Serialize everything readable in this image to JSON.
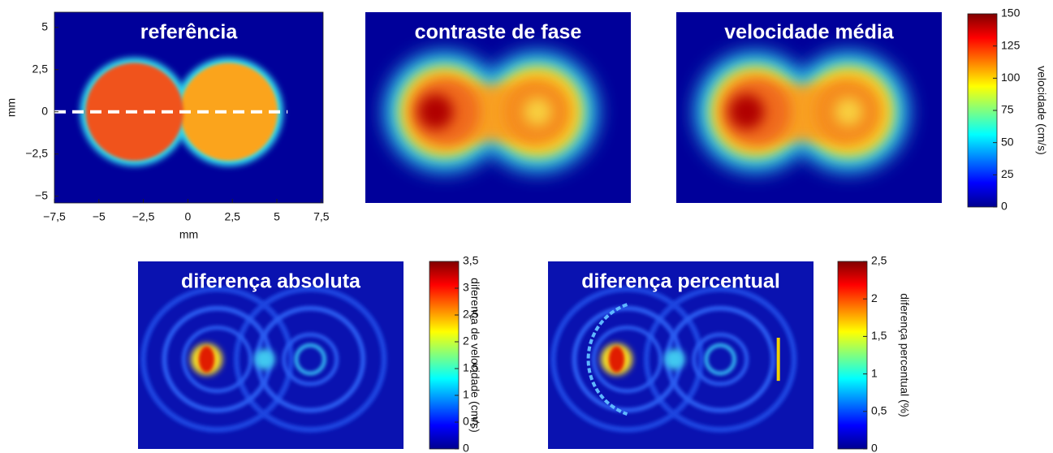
{
  "chart_data": [
    {
      "type": "heatmap",
      "title": "referência",
      "xlabel": "mm",
      "ylabel": "mm",
      "xlim": [
        -7.5,
        7.6
      ],
      "ylim": [
        -5.4,
        5.9
      ],
      "xticks": [
        {
          "value": -7.5,
          "label": "−7,5"
        },
        {
          "value": -5,
          "label": "−5"
        },
        {
          "value": -2.5,
          "label": "−2,5"
        },
        0,
        {
          "value": 2.5,
          "label": "2,5"
        },
        5,
        {
          "value": 7.5,
          "label": "7,5"
        }
      ],
      "yticks": [
        {
          "value": -5,
          "label": "−5"
        },
        {
          "value": -2.5,
          "label": "−2,5"
        },
        0,
        {
          "value": 2.5,
          "label": "2,5"
        },
        5
      ]
    },
    {
      "type": "heatmap",
      "title": "contraste de fase"
    },
    {
      "type": "heatmap",
      "title": "velocidade média"
    },
    {
      "type": "colorbar",
      "label": "velocidade (cm/s)",
      "ylim": [
        0,
        150
      ],
      "yticks": [
        0,
        25,
        50,
        75,
        100,
        125,
        150
      ]
    },
    {
      "type": "heatmap",
      "title": "diferença absoluta"
    },
    {
      "type": "colorbar",
      "label": "diferença de velocidade (cm/s)",
      "ylim": [
        0,
        3.5
      ],
      "yticks": [
        0,
        {
          "value": 0.5,
          "label": "0,5"
        },
        1,
        {
          "value": 1.5,
          "label": "1,5"
        },
        2,
        {
          "value": 2.5,
          "label": "2,5"
        },
        3,
        {
          "value": 3.5,
          "label": "3,5"
        }
      ]
    },
    {
      "type": "heatmap",
      "title": "diferença percentual"
    },
    {
      "type": "colorbar",
      "label": "diferença percentual (%)",
      "ylim": [
        0,
        2.5
      ],
      "yticks": [
        0,
        {
          "value": 0.5,
          "label": "0,5"
        },
        1,
        {
          "value": 1.5,
          "label": "1,5"
        },
        2,
        {
          "value": 2.5,
          "label": "2,5"
        }
      ]
    }
  ]
}
